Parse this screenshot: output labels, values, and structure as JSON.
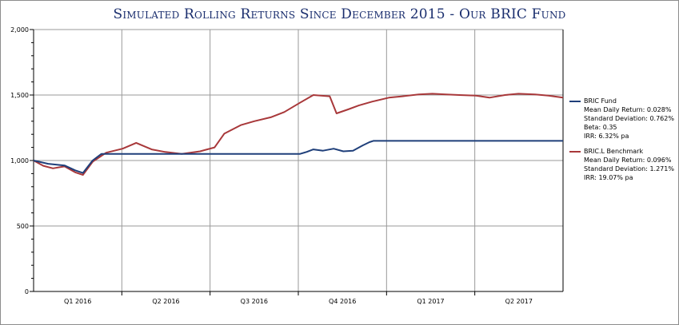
{
  "chart_data": {
    "type": "line",
    "title": "Simulated Rolling Returns Since December 2015 - Our BRIC Fund",
    "xlabel": "",
    "ylabel": "",
    "ylim": [
      0,
      2000
    ],
    "y_ticks": [
      "0",
      "500",
      "1,000",
      "1,500",
      "2,000"
    ],
    "x_tick_labels": [
      "Q1 2016",
      "Q2 2016",
      "Q3 2016",
      "Q4 2016",
      "Q1 2017",
      "Q2 2017"
    ],
    "x_range": [
      "2015-12-31",
      "2017-06-30"
    ],
    "grid": {
      "vertical": true,
      "horizontal": true
    },
    "series": [
      {
        "name": "BRIC Fund",
        "color": "#1f3f7a",
        "points": [
          [
            "2015-12-31",
            1000
          ],
          [
            "2016-01-15",
            975
          ],
          [
            "2016-02-01",
            962
          ],
          [
            "2016-02-12",
            925
          ],
          [
            "2016-02-20",
            905
          ],
          [
            "2016-03-01",
            1000
          ],
          [
            "2016-03-10",
            1050
          ],
          [
            "2016-10-01",
            1050
          ],
          [
            "2016-10-08",
            1065
          ],
          [
            "2016-10-15",
            1085
          ],
          [
            "2016-10-25",
            1075
          ],
          [
            "2016-11-05",
            1090
          ],
          [
            "2016-11-15",
            1070
          ],
          [
            "2016-11-25",
            1075
          ],
          [
            "2016-12-05",
            1115
          ],
          [
            "2016-12-12",
            1140
          ],
          [
            "2016-12-16",
            1150
          ],
          [
            "2017-06-30",
            1150
          ]
        ],
        "stats": [
          "Mean Daily Return: 0.028%",
          "Standard Deviation: 0.762%",
          "Beta: 0.35",
          "IRR: 6.32% pa"
        ]
      },
      {
        "name": "BRIC.L Benchmark",
        "color": "#a8383a",
        "points": [
          [
            "2015-12-31",
            1000
          ],
          [
            "2016-01-10",
            960
          ],
          [
            "2016-01-20",
            940
          ],
          [
            "2016-02-01",
            955
          ],
          [
            "2016-02-12",
            910
          ],
          [
            "2016-02-20",
            890
          ],
          [
            "2016-03-01",
            990
          ],
          [
            "2016-03-15",
            1060
          ],
          [
            "2016-04-01",
            1090
          ],
          [
            "2016-04-15",
            1135
          ],
          [
            "2016-05-01",
            1085
          ],
          [
            "2016-05-15",
            1065
          ],
          [
            "2016-06-01",
            1050
          ],
          [
            "2016-06-20",
            1070
          ],
          [
            "2016-07-05",
            1100
          ],
          [
            "2016-07-15",
            1205
          ],
          [
            "2016-08-01",
            1270
          ],
          [
            "2016-08-15",
            1300
          ],
          [
            "2016-09-01",
            1330
          ],
          [
            "2016-09-15",
            1370
          ],
          [
            "2016-10-01",
            1440
          ],
          [
            "2016-10-15",
            1500
          ],
          [
            "2016-11-01",
            1490
          ],
          [
            "2016-11-08",
            1360
          ],
          [
            "2016-11-20",
            1390
          ],
          [
            "2016-12-01",
            1420
          ],
          [
            "2016-12-15",
            1450
          ],
          [
            "2017-01-01",
            1480
          ],
          [
            "2017-01-15",
            1490
          ],
          [
            "2017-02-01",
            1505
          ],
          [
            "2017-02-15",
            1510
          ],
          [
            "2017-03-01",
            1505
          ],
          [
            "2017-03-15",
            1500
          ],
          [
            "2017-04-01",
            1495
          ],
          [
            "2017-04-15",
            1480
          ],
          [
            "2017-05-01",
            1500
          ],
          [
            "2017-05-15",
            1510
          ],
          [
            "2017-06-01",
            1505
          ],
          [
            "2017-06-15",
            1495
          ],
          [
            "2017-06-30",
            1480
          ]
        ],
        "stats": [
          "Mean Daily Return: 0.096%",
          "Standard Deviation: 1.271%",
          "IRR: 19.07% pa"
        ]
      }
    ]
  }
}
